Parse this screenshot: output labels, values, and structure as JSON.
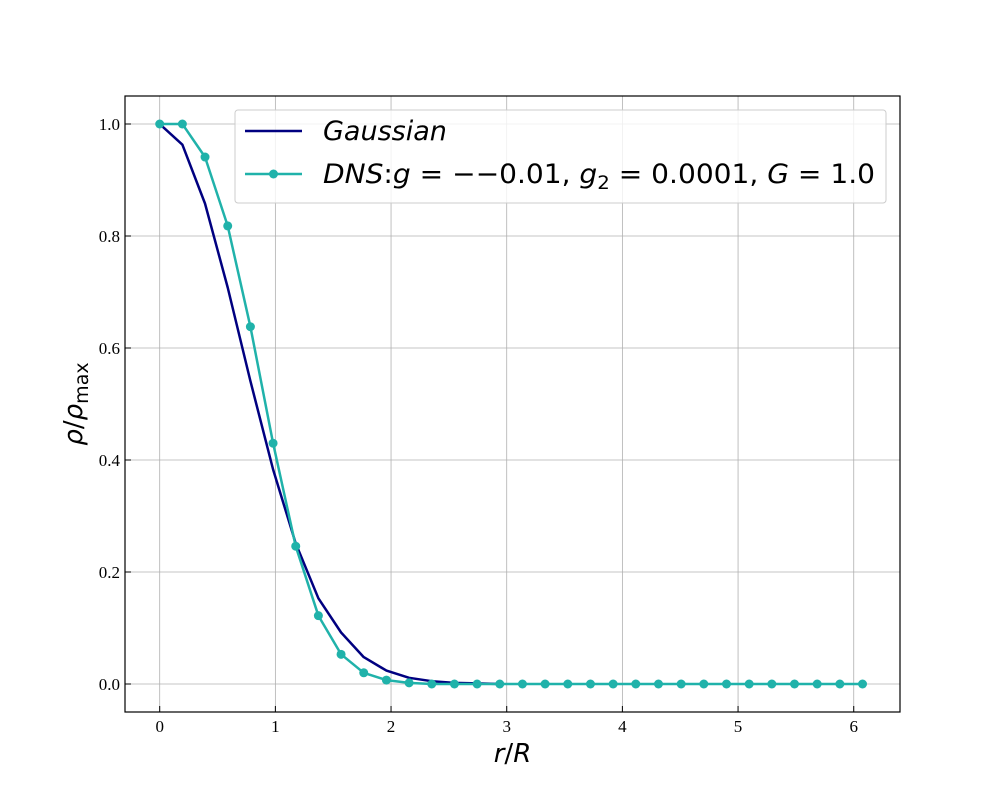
{
  "chart_data": {
    "type": "line",
    "xlabel_parts": [
      "r",
      "/",
      "R"
    ],
    "ylabel_parts": [
      "ρ",
      "/",
      "ρ",
      "max"
    ],
    "xlim": [
      -0.3,
      6.4
    ],
    "ylim": [
      -0.05,
      1.05
    ],
    "xticks": [
      0,
      1,
      2,
      3,
      4,
      5,
      6
    ],
    "yticks": [
      0.0,
      0.2,
      0.4,
      0.6,
      0.8,
      1.0
    ],
    "xtick_labels": [
      "0",
      "1",
      "2",
      "3",
      "4",
      "5",
      "6"
    ],
    "ytick_labels": [
      "0.0",
      "0.2",
      "0.4",
      "0.6",
      "0.8",
      "1.0"
    ],
    "grid": true,
    "legend_position": "top-right",
    "series": [
      {
        "name": "Gaussian",
        "color": "#000080",
        "markers": false,
        "x": [
          0.0,
          0.196,
          0.392,
          0.588,
          0.784,
          0.98,
          1.176,
          1.372,
          1.568,
          1.764,
          1.96,
          2.156,
          2.352,
          2.548,
          2.744,
          2.94
        ],
        "y": [
          1.0,
          0.963,
          0.858,
          0.708,
          0.541,
          0.383,
          0.251,
          0.153,
          0.092,
          0.048,
          0.024,
          0.011,
          0.005,
          0.002,
          0.001,
          0.0
        ]
      },
      {
        "name_parts": [
          "DNS",
          ":",
          "g",
          " = −−0.01, ",
          "g",
          "2",
          " = 0.0001, ",
          "G",
          " = 1.0"
        ],
        "color": "#20b2aa",
        "markers": true,
        "x": [
          0.0,
          0.196,
          0.392,
          0.588,
          0.784,
          0.98,
          1.176,
          1.372,
          1.568,
          1.764,
          1.96,
          2.156,
          2.352,
          2.548,
          2.744,
          2.94,
          3.136,
          3.332,
          3.528,
          3.724,
          3.92,
          4.116,
          4.312,
          4.508,
          4.704,
          4.9,
          5.096,
          5.292,
          5.488,
          5.684,
          5.88,
          6.076
        ],
        "y": [
          1.0,
          1.0,
          0.941,
          0.818,
          0.638,
          0.43,
          0.246,
          0.122,
          0.053,
          0.02,
          0.007,
          0.002,
          0.0,
          0.0,
          0.0,
          0.0,
          0.0,
          0.0,
          0.0,
          0.0,
          0.0,
          0.0,
          0.0,
          0.0,
          0.0,
          0.0,
          0.0,
          0.0,
          0.0,
          0.0,
          0.0,
          0.0
        ]
      }
    ]
  }
}
